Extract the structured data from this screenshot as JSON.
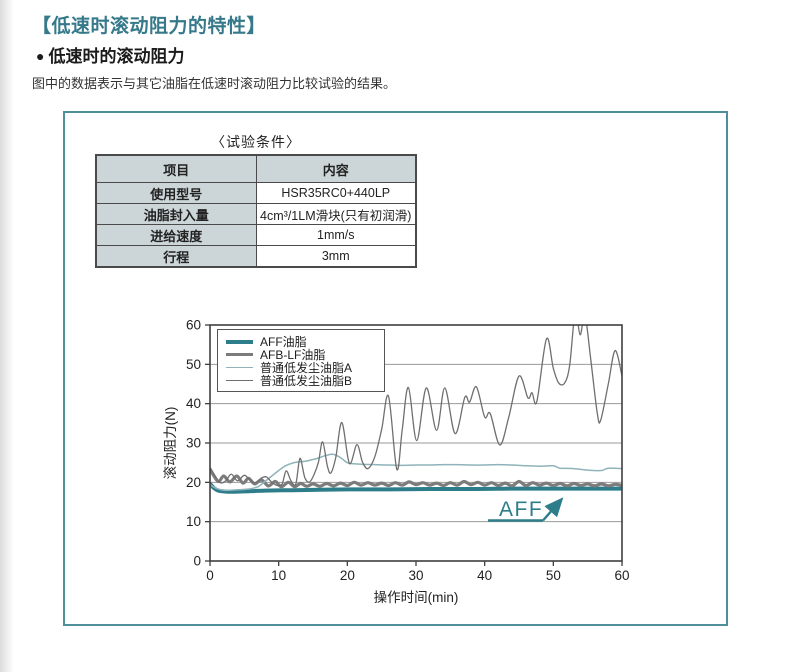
{
  "page": {
    "title": "【低速时滚动阻力的特性】",
    "subtitle_bullet": "●",
    "subtitle": "低速时的滚动阻力",
    "description": "图中的数据表示与其它油脂在低速时滚动阻力比较试验的结果。"
  },
  "panel": {
    "table_caption": "〈试验条件〉",
    "table": {
      "columns": [
        "项目",
        "内容"
      ],
      "rows": [
        [
          "使用型号",
          "HSR35RC0+440LP"
        ],
        [
          "油脂封入量",
          "4cm³/1LM滑块(只有初润滑)"
        ],
        [
          "进给速度",
          "1mm/s"
        ],
        [
          "行程",
          "3mm"
        ]
      ]
    }
  },
  "colors": {
    "accent_teal": "#35798A",
    "panel_border": "#4E8F9B",
    "table_header_bg": "#CCD5D8",
    "grid": "#999999",
    "axis": "#3f3f3f",
    "tick_text": "#222222"
  },
  "chart_data": {
    "type": "line",
    "title": "",
    "xlabel": "操作时间(min)",
    "ylabel": "滚动阻力(N)",
    "xlim": [
      0,
      60
    ],
    "ylim": [
      0,
      60
    ],
    "x_ticks": [
      0,
      10,
      20,
      30,
      40,
      50,
      60
    ],
    "y_ticks": [
      0,
      10,
      20,
      30,
      40,
      50,
      60
    ],
    "grid": "horizontal",
    "legend_position": "upper-left-inside",
    "annotation": {
      "text": "AFF",
      "color": "#2E7D8A"
    },
    "series": [
      {
        "name": "AFF油脂",
        "color": "#2E7D8A",
        "width": 4,
        "points": [
          [
            0,
            19.6
          ],
          [
            0.6,
            18.5
          ],
          [
            1.2,
            17.9
          ],
          [
            2,
            17.7
          ],
          [
            3,
            17.6
          ],
          [
            5,
            17.7
          ],
          [
            8,
            17.9
          ],
          [
            12,
            18.0
          ],
          [
            16,
            18.1
          ],
          [
            20,
            18.2
          ],
          [
            26,
            18.2
          ],
          [
            32,
            18.3
          ],
          [
            38,
            18.3
          ],
          [
            44,
            18.4
          ],
          [
            50,
            18.4
          ],
          [
            55,
            18.4
          ],
          [
            60,
            18.4
          ]
        ]
      },
      {
        "name": "AFB-LF油脂",
        "color": "#7C7C7C",
        "width": 3.2,
        "points": [
          [
            0,
            23.3
          ],
          [
            0.8,
            21.0
          ],
          [
            1.3,
            20.2
          ],
          [
            2,
            21.6
          ],
          [
            2.9,
            20.1
          ],
          [
            3.9,
            21.6
          ],
          [
            4.8,
            19.8
          ],
          [
            5.6,
            21.0
          ],
          [
            6.5,
            19.6
          ],
          [
            7.5,
            20.6
          ],
          [
            8.5,
            19.1
          ],
          [
            9.5,
            20.2
          ],
          [
            10.4,
            18.9
          ],
          [
            11.4,
            20.0
          ],
          [
            12.3,
            18.9
          ],
          [
            13.2,
            19.7
          ],
          [
            14.1,
            19.0
          ],
          [
            15,
            19.6
          ],
          [
            16,
            19.0
          ],
          [
            17,
            19.7
          ],
          [
            18,
            19.1
          ],
          [
            19,
            19.8
          ],
          [
            20,
            19.2
          ],
          [
            21,
            20.0
          ],
          [
            22,
            19.3
          ],
          [
            23,
            19.9
          ],
          [
            24,
            19.3
          ],
          [
            25,
            19.8
          ],
          [
            26,
            19.2
          ],
          [
            27,
            19.9
          ],
          [
            28,
            19.3
          ],
          [
            29,
            20.1
          ],
          [
            30,
            19.4
          ],
          [
            31,
            19.9
          ],
          [
            32,
            19.3
          ],
          [
            33,
            19.8
          ],
          [
            34,
            19.2
          ],
          [
            35,
            19.9
          ],
          [
            36,
            19.3
          ],
          [
            37,
            20.2
          ],
          [
            38,
            19.4
          ],
          [
            39,
            20.0
          ],
          [
            40,
            19.3
          ],
          [
            41,
            19.9
          ],
          [
            42,
            19.2
          ],
          [
            43,
            19.8
          ],
          [
            44,
            19.1
          ],
          [
            45,
            20.2
          ],
          [
            46,
            19.2
          ],
          [
            47,
            19.9
          ],
          [
            48,
            19.3
          ],
          [
            49,
            19.8
          ],
          [
            50,
            19.2
          ],
          [
            51,
            19.7
          ],
          [
            52,
            19.1
          ],
          [
            53,
            19.7
          ],
          [
            54,
            19.2
          ],
          [
            55,
            19.6
          ],
          [
            56,
            19.1
          ],
          [
            57,
            19.6
          ],
          [
            58,
            19.1
          ],
          [
            59,
            19.5
          ],
          [
            60,
            19.2
          ]
        ]
      },
      {
        "name": "普通低发尘油脂A",
        "color": "#8FB3BA",
        "width": 1.5,
        "points": [
          [
            0,
            19.4
          ],
          [
            1,
            18.4
          ],
          [
            2,
            18.0
          ],
          [
            3,
            18.0
          ],
          [
            4,
            18.1
          ],
          [
            5,
            18.2
          ],
          [
            6,
            18.4
          ],
          [
            7,
            18.9
          ],
          [
            8,
            20.2
          ],
          [
            9,
            21.6
          ],
          [
            10,
            23.0
          ],
          [
            11,
            24.2
          ],
          [
            12,
            24.9
          ],
          [
            13,
            25.2
          ],
          [
            14,
            25.4
          ],
          [
            15,
            25.8
          ],
          [
            16,
            26.3
          ],
          [
            17,
            26.9
          ],
          [
            18,
            27.1
          ],
          [
            19,
            26.3
          ],
          [
            20,
            25.0
          ],
          [
            21,
            24.7
          ],
          [
            22,
            24.6
          ],
          [
            24,
            24.5
          ],
          [
            26,
            24.4
          ],
          [
            28,
            24.3
          ],
          [
            30,
            24.4
          ],
          [
            32,
            24.4
          ],
          [
            34,
            24.5
          ],
          [
            36,
            24.5
          ],
          [
            38,
            24.4
          ],
          [
            40,
            24.4
          ],
          [
            42,
            24.5
          ],
          [
            44,
            24.4
          ],
          [
            46,
            24.2
          ],
          [
            48,
            24.1
          ],
          [
            50,
            24.2
          ],
          [
            51,
            23.6
          ],
          [
            53,
            23.5
          ],
          [
            55,
            23.1
          ],
          [
            57,
            23.0
          ],
          [
            58,
            23.6
          ],
          [
            60,
            23.5
          ]
        ]
      },
      {
        "name": "普通低发尘油脂B",
        "color": "#6F6F6F",
        "width": 1.3,
        "points": [
          [
            0,
            23.8
          ],
          [
            0.7,
            21.8
          ],
          [
            1.5,
            19.9
          ],
          [
            2.3,
            20.4
          ],
          [
            3.1,
            22.1
          ],
          [
            4,
            20.4
          ],
          [
            5,
            21.8
          ],
          [
            5.8,
            20.6
          ],
          [
            6.6,
            19.9
          ],
          [
            7.4,
            21.0
          ],
          [
            8.2,
            21.4
          ],
          [
            9,
            20.0
          ],
          [
            9.8,
            19.2
          ],
          [
            10.5,
            19.6
          ],
          [
            11.1,
            22.9
          ],
          [
            11.8,
            20.4
          ],
          [
            12.5,
            19.6
          ],
          [
            13.1,
            26.1
          ],
          [
            13.8,
            21.2
          ],
          [
            14.5,
            20.1
          ],
          [
            15.2,
            22.2
          ],
          [
            15.8,
            25.2
          ],
          [
            16.4,
            30.3
          ],
          [
            17.1,
            24.1
          ],
          [
            17.6,
            22.4
          ],
          [
            18.3,
            26.2
          ],
          [
            19.2,
            35.2
          ],
          [
            20.3,
            24.8
          ],
          [
            21.4,
            29.6
          ],
          [
            22.2,
            25.2
          ],
          [
            23,
            23.5
          ],
          [
            24,
            26.5
          ],
          [
            25,
            33.5
          ],
          [
            26,
            41.9
          ],
          [
            27.2,
            23.3
          ],
          [
            28,
            33.5
          ],
          [
            28.9,
            44.1
          ],
          [
            30.1,
            30.6
          ],
          [
            31.5,
            44.0
          ],
          [
            33,
            33.2
          ],
          [
            34.2,
            44.0
          ],
          [
            35.7,
            32.4
          ],
          [
            37.1,
            41.6
          ],
          [
            37.8,
            40.4
          ],
          [
            38.8,
            44.3
          ],
          [
            40,
            36.6
          ],
          [
            40.8,
            37.5
          ],
          [
            42.2,
            29.5
          ],
          [
            43.5,
            36.5
          ],
          [
            45,
            47.0
          ],
          [
            46.3,
            41.5
          ],
          [
            46.9,
            42.8
          ],
          [
            47.6,
            40.6
          ],
          [
            49,
            56.5
          ],
          [
            50,
            49.0
          ],
          [
            50.8,
            45.2
          ],
          [
            51.7,
            45.4
          ],
          [
            52.4,
            50.0
          ],
          [
            53.2,
            63.5
          ],
          [
            53.9,
            57.5
          ],
          [
            54.6,
            62.5
          ],
          [
            55.4,
            52.0
          ],
          [
            56.4,
            37.5
          ],
          [
            56.9,
            35.8
          ],
          [
            58,
            45.0
          ],
          [
            59,
            53.5
          ],
          [
            60,
            47.0
          ]
        ]
      }
    ]
  }
}
